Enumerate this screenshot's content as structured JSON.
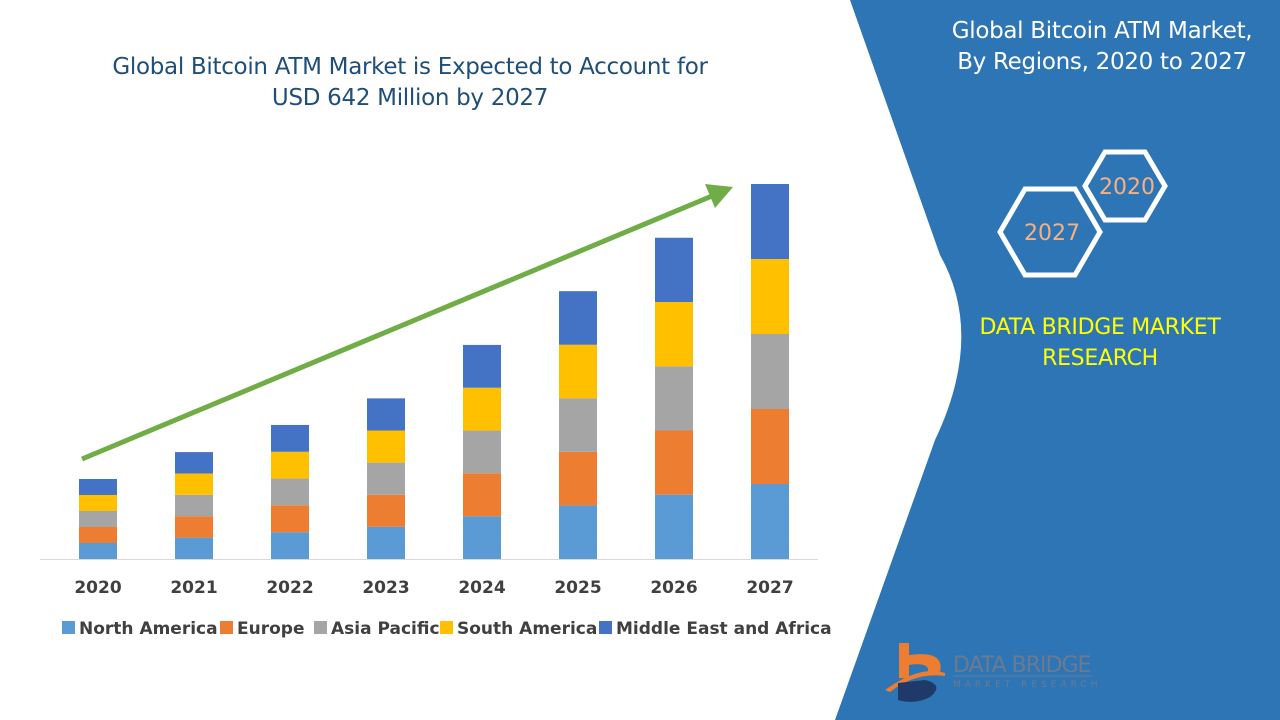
{
  "chart_data": {
    "type": "bar",
    "stacked": true,
    "title": "Global Bitcoin ATM Market is Expected to Account for USD 642 Million by 2027",
    "title_lines": [
      "Global Bitcoin ATM Market is Expected to Account for",
      "USD 642 Million by 2027"
    ],
    "xlabel": "",
    "ylabel": "",
    "categories": [
      "2020",
      "2021",
      "2022",
      "2023",
      "2024",
      "2025",
      "2026",
      "2027"
    ],
    "ylim": [
      0,
      642
    ],
    "grid": false,
    "legend_position": "bottom",
    "series": [
      {
        "name": "North America",
        "color": "#5B9BD5",
        "values": [
          27.4,
          36.6,
          45.9,
          55,
          73.3,
          91.7,
          110,
          128.4
        ]
      },
      {
        "name": "Europe",
        "color": "#ED7D31",
        "values": [
          27.4,
          36.6,
          45.9,
          55,
          73.3,
          91.7,
          110,
          128.4
        ]
      },
      {
        "name": "Asia Pacific",
        "color": "#A5A5A5",
        "values": [
          27.4,
          36.6,
          45.9,
          55,
          73.3,
          91.7,
          110,
          128.4
        ]
      },
      {
        "name": "South America",
        "color": "#FFC000",
        "values": [
          27.4,
          36.6,
          45.9,
          55,
          73.3,
          91.7,
          110,
          128.4
        ]
      },
      {
        "name": "Middle East and Africa",
        "color": "#4472C4",
        "values": [
          27.4,
          36.6,
          45.9,
          55,
          73.3,
          91.7,
          110,
          128.4
        ]
      }
    ],
    "annotation": "growth-trend-arrow",
    "arrow_color": "#70AD47"
  },
  "panel": {
    "title_lines": [
      "Global Bitcoin ATM Market,",
      "By Regions, 2020 to 2027"
    ],
    "hex_start": "2020",
    "hex_end": "2027",
    "brand_lines": [
      "DATA BRIDGE MARKET",
      "RESEARCH"
    ],
    "color": "#2E75B6",
    "brand_color": "#FFFF00"
  },
  "logo": {
    "line1": "DATA BRIDGE",
    "line2": "MARKET RESEARCH"
  }
}
